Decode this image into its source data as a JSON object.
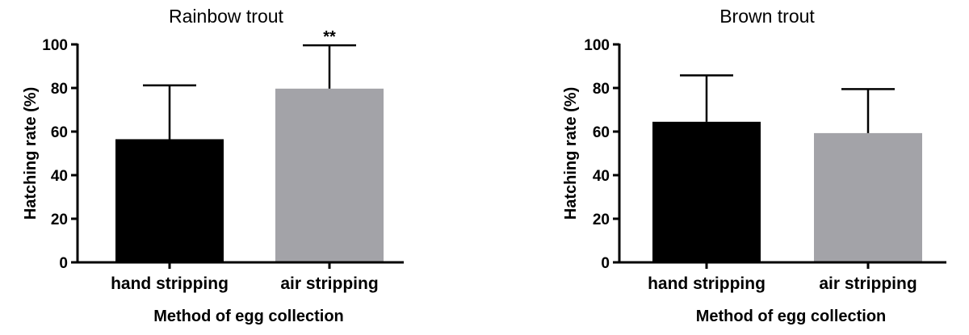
{
  "chart_data": [
    {
      "type": "bar",
      "title": "Rainbow trout",
      "xlabel": "Method of egg collection",
      "ylabel": "Hatching rate (%)",
      "ylim": [
        0,
        100
      ],
      "yticks": [
        0,
        20,
        40,
        60,
        80,
        100
      ],
      "categories": [
        "hand stripping",
        "air stripping"
      ],
      "values": [
        56.5,
        79.7
      ],
      "error_upper": [
        81.2,
        99.6
      ],
      "colors": [
        "#000000",
        "#a3a3a8"
      ],
      "annotations": [
        "",
        "**"
      ],
      "grid": false
    },
    {
      "type": "bar",
      "title": "Brown trout",
      "xlabel": "Method of egg collection",
      "ylabel": "Hatching rate (%)",
      "ylim": [
        0,
        100
      ],
      "yticks": [
        0,
        20,
        40,
        60,
        80,
        100
      ],
      "categories": [
        "hand stripping",
        "air stripping"
      ],
      "values": [
        64.5,
        59.3
      ],
      "error_upper": [
        85.8,
        79.5
      ],
      "colors": [
        "#000000",
        "#a3a3a8"
      ],
      "annotations": [
        "",
        ""
      ],
      "grid": false
    }
  ]
}
